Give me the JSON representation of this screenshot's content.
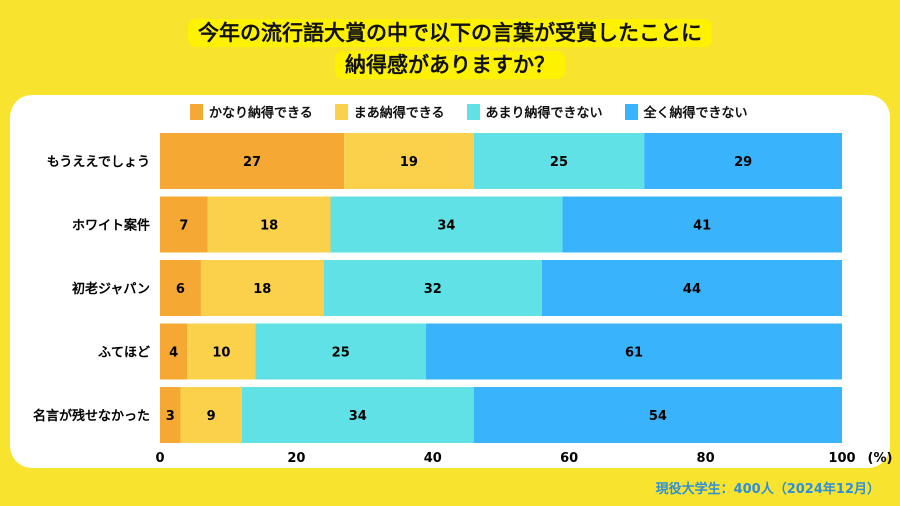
{
  "title_line1": "今年の流行語大賞の中で以下の言葉が受賞したことに",
  "title_line2": "納得感がありますか？",
  "source": "現役大学生：400人（2024年12月）",
  "chart_data": {
    "type": "bar",
    "orientation": "horizontal",
    "stacked": true,
    "categories": [
      "もうええでしょう",
      "ホワイト案件",
      "初老ジャパン",
      "ふてほど",
      "名言が残せなかった"
    ],
    "series": [
      {
        "name": "かなり納得できる",
        "color": "#f5a833",
        "values": [
          27,
          7,
          6,
          4,
          3
        ]
      },
      {
        "name": "まあ納得できる",
        "color": "#fbd14b",
        "values": [
          19,
          18,
          18,
          10,
          9
        ]
      },
      {
        "name": "あまり納得できない",
        "color": "#5fe1e5",
        "values": [
          25,
          34,
          32,
          25,
          34
        ]
      },
      {
        "name": "全く納得できない",
        "color": "#39b3fb",
        "values": [
          29,
          41,
          44,
          61,
          54
        ]
      }
    ],
    "xlim": [
      0,
      100
    ],
    "xticks": [
      "0",
      "20",
      "40",
      "60",
      "80",
      "100"
    ],
    "xunit": "(%)",
    "legend": "top",
    "grid": false
  }
}
